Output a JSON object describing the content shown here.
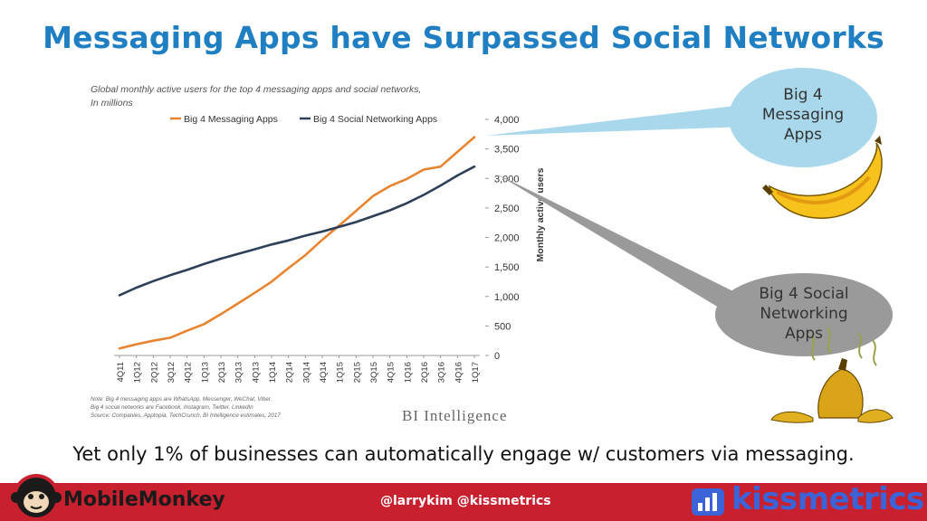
{
  "slide": {
    "title": "Messaging Apps have Surpassed Social Networks",
    "takeaway": "Yet only 1% of businesses can automatically engage w/ customers via messaging."
  },
  "chart_data": {
    "type": "line",
    "caption_line1": "Global monthly active users for the top 4 messaging apps and social networks,",
    "caption_line2": "In millions",
    "ylabel": "Monthly active users",
    "ylim": [
      0,
      4000
    ],
    "yticks": [
      "0",
      "500",
      "1,000",
      "1,500",
      "2,000",
      "2,500",
      "3,000",
      "3,500",
      "4,000"
    ],
    "y_axis_side": "right",
    "legend_position": "top-left",
    "categories": [
      "4Q11",
      "1Q12",
      "2Q12",
      "3Q12",
      "4Q12",
      "1Q13",
      "2Q13",
      "3Q13",
      "4Q13",
      "1Q14",
      "2Q14",
      "3Q14",
      "4Q14",
      "1Q15",
      "2Q15",
      "3Q15",
      "4Q15",
      "1Q16",
      "2Q16",
      "3Q16",
      "4Q16",
      "1Q17"
    ],
    "series": [
      {
        "name": "Big 4 Messaging Apps",
        "color": "#e8842f",
        "values": [
          120,
          190,
          250,
          300,
          420,
          530,
          700,
          880,
          1060,
          1250,
          1480,
          1700,
          1960,
          2200,
          2450,
          2700,
          2870,
          2990,
          3150,
          3200,
          3450,
          3700
        ]
      },
      {
        "name": "Big 4 Social Networking Apps",
        "color": "#2e3f58",
        "values": [
          1020,
          1150,
          1260,
          1360,
          1450,
          1550,
          1640,
          1720,
          1800,
          1880,
          1950,
          2030,
          2100,
          2180,
          2260,
          2360,
          2460,
          2580,
          2720,
          2880,
          3050,
          3200
        ]
      }
    ],
    "notes": [
      "Note: Big 4 messaging apps are WhatsApp, Messenger, WeChat, Viber.",
      "Big 4 social networks are Facebook, Instagram, Twitter, LinkedIn",
      "Source: Companies, Apptopia, TechCrunch, BI Intelligence estimates, 2017"
    ],
    "brand": "BI Intelligence"
  },
  "callouts": {
    "messaging_line1": "Big 4",
    "messaging_line2": "Messaging",
    "messaging_line3": "Apps",
    "social_line1": "Big 4 Social",
    "social_line2": "Networking",
    "social_line3": "Apps",
    "messaging_bubble_color": "#a9d8ec",
    "social_bubble_color": "#9a9a9a"
  },
  "footer": {
    "left_brand": "MobileMonkey",
    "handles": "@larrykim @kissmetrics",
    "right_brand": "kissmetrics",
    "bar_color": "#c8202f"
  },
  "icons": [
    "monkey-icon",
    "kissmetrics-bar-icon",
    "banana-icon",
    "banana-peel-icon"
  ]
}
